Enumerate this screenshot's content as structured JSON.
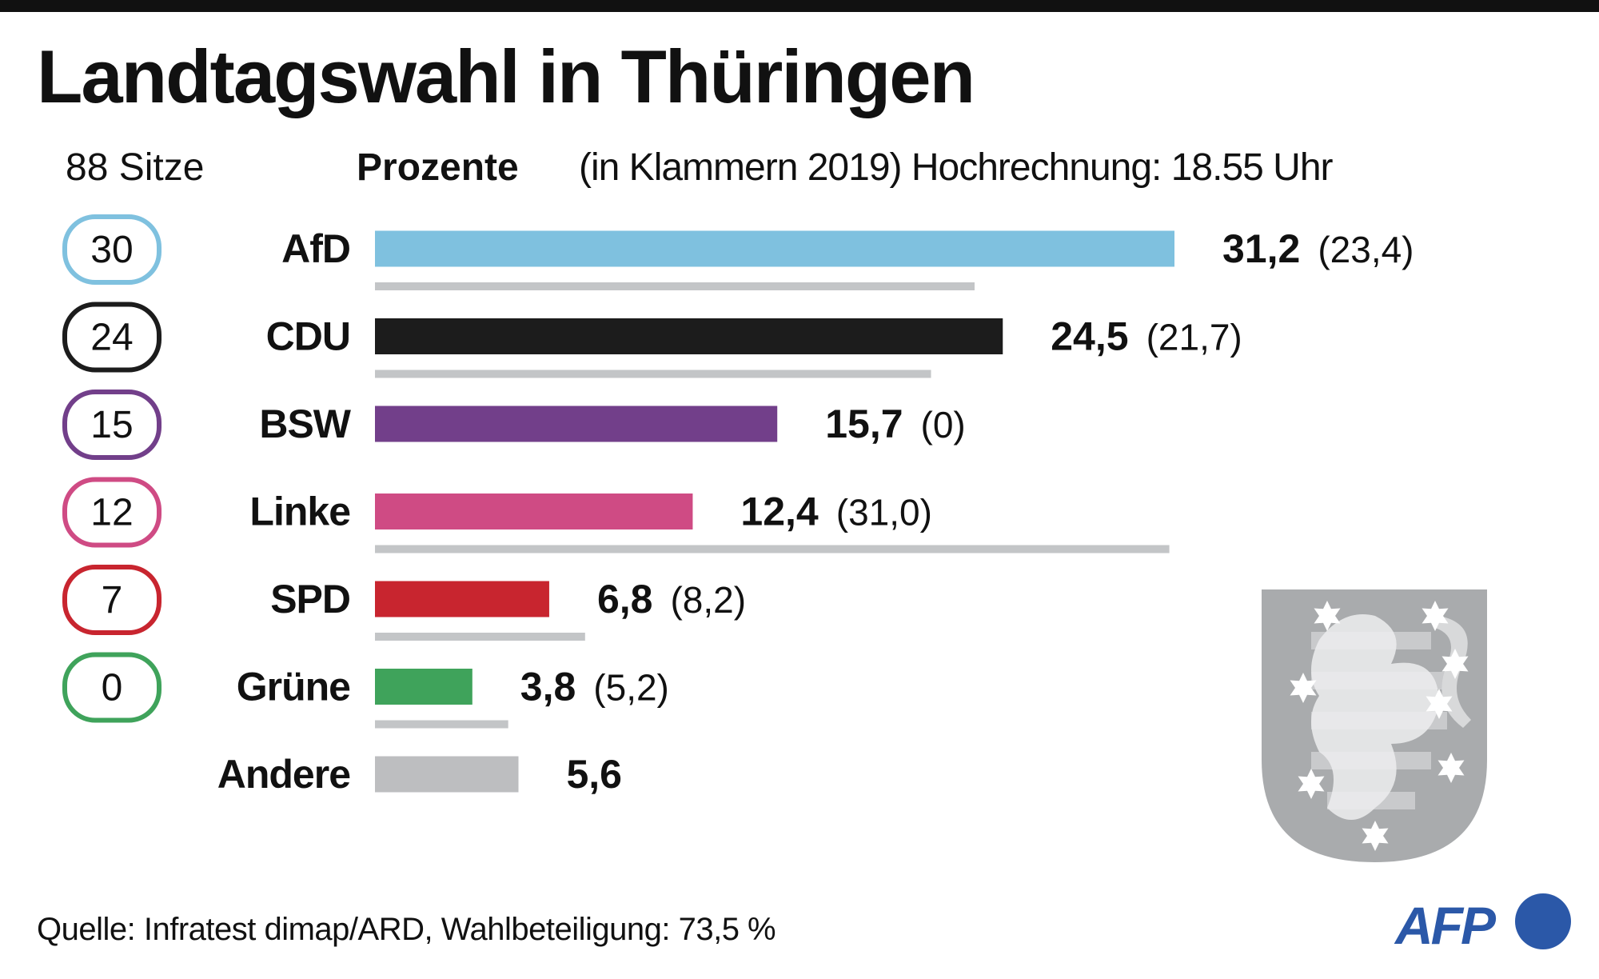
{
  "title": "Landtagswahl in Thüringen",
  "header": {
    "seats_label": "88 Sitze",
    "percent_label": "Prozente",
    "note": "(in Klammern 2019) Hochrechnung: 18.55 Uhr"
  },
  "footer": {
    "source": "Quelle: Infratest dimap/ARD, Wahlbeteiligung: 73,5 %"
  },
  "logo": {
    "text": "AFP",
    "color": "#2b58a8"
  },
  "crest": {
    "name": "Thüringen coat of arms",
    "color": "#a9abad"
  },
  "chart_data": {
    "type": "bar",
    "orientation": "horizontal",
    "categories": [
      "AfD",
      "CDU",
      "BSW",
      "Linke",
      "SPD",
      "Grüne",
      "Andere"
    ],
    "series": [
      {
        "name": "Prozente",
        "values": [
          31.2,
          24.5,
          15.7,
          12.4,
          6.8,
          3.8,
          5.6
        ],
        "labels": [
          "31,2",
          "24,5",
          "15,7",
          "12,4",
          "6,8",
          "3,8",
          "5,6"
        ]
      },
      {
        "name": "2019",
        "values": [
          23.4,
          21.7,
          0,
          31.0,
          8.2,
          5.2,
          null
        ],
        "labels": [
          "(23,4)",
          "(21,7)",
          "(0)",
          "(31,0)",
          "(8,2)",
          "(5,2)",
          ""
        ]
      }
    ],
    "seats": [
      "30",
      "24",
      "15",
      "12",
      "7",
      "0",
      ""
    ],
    "colors": [
      "#7fc1df",
      "#1c1c1c",
      "#723f8a",
      "#cf4b84",
      "#c8252f",
      "#3fa35b",
      "#bdbec0"
    ],
    "previous_color": "#c3c5c7",
    "grid": false,
    "axes_visible": false
  }
}
